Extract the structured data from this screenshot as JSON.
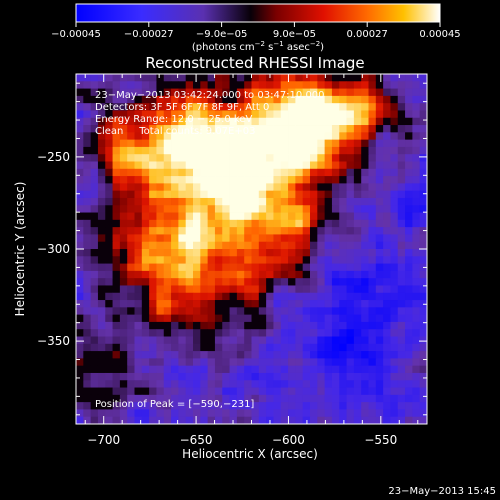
{
  "colorbar": {
    "tick_labels": [
      "−0.00045",
      "−0.00027",
      "−9.0e−05",
      "9.0e−05",
      "0.00027",
      "0.00045"
    ],
    "range": [
      -0.00045,
      0.00045
    ],
    "units_main": "(photons cm",
    "units_exp1": "−2",
    "units_mid": " s",
    "units_exp2": "−1",
    "units_end": " asec",
    "units_exp3": "−2",
    "units_close": ")"
  },
  "chart_data": {
    "type": "heatmap",
    "title": "Reconstructed RHESSI Image",
    "xlabel": "Heliocentric X (arcsec)",
    "ylabel": "Heliocentric Y (arcsec)",
    "xlim": [
      -715,
      -525
    ],
    "ylim": [
      -395,
      -205
    ],
    "x_ticks": [
      -700,
      -650,
      -600,
      -550
    ],
    "y_ticks": [
      -250,
      -300,
      -350
    ],
    "x_tick_labels": [
      "−700",
      "−650",
      "−600",
      "−550"
    ],
    "y_tick_labels": [
      "−250",
      "−300",
      "−350"
    ],
    "info_lines": [
      "23−May−2013 03:42:24.000 to 03:47:10.000",
      "Detectors: 3F 5F 6F 7F 8F 9F, Att 0",
      "Energy Range: 12.0 − 25.0 keV",
      "Clean     Total counts: 9.07E+03"
    ],
    "peak_text": "Position of Peak = [−590,−231]",
    "peak_position": [
      -590,
      -231
    ],
    "colormap": "rhessi-diverging (blue-purple-black-red-orange-yellow-white)"
  },
  "footer": {
    "timestamp": "23−May−2013 15:45"
  }
}
